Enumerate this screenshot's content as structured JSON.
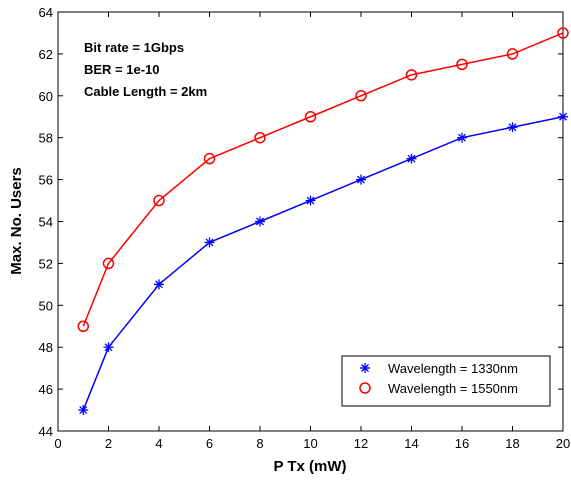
{
  "chart_data": {
    "type": "line",
    "xlabel": "P Tx (mW)",
    "ylabel": "Max. No. Users",
    "xlim": [
      0,
      20
    ],
    "ylim": [
      44,
      64
    ],
    "xticks": [
      0,
      2,
      4,
      6,
      8,
      10,
      12,
      14,
      16,
      18,
      20
    ],
    "yticks": [
      44,
      46,
      48,
      50,
      52,
      54,
      56,
      58,
      60,
      62,
      64
    ],
    "grid": false,
    "legend_position": "bottom-right",
    "annotations": [
      "Bit rate = 1Gbps",
      "BER = 1e-10",
      "Cable Length = 2km"
    ],
    "series": [
      {
        "name": "Wavelength = 1330nm",
        "color": "#0000ff",
        "marker": "asterisk",
        "x": [
          1,
          2,
          4,
          6,
          8,
          10,
          12,
          14,
          16,
          18,
          20
        ],
        "y": [
          45,
          48,
          51,
          53,
          54,
          55,
          56,
          57,
          58,
          58.5,
          59
        ]
      },
      {
        "name": "Wavelength = 1550nm",
        "color": "#ff0000",
        "marker": "circle",
        "x": [
          1,
          2,
          4,
          6,
          8,
          10,
          12,
          14,
          16,
          18,
          20
        ],
        "y": [
          49,
          52,
          55,
          57,
          58,
          59,
          60,
          61,
          61.5,
          62,
          63
        ]
      }
    ]
  }
}
